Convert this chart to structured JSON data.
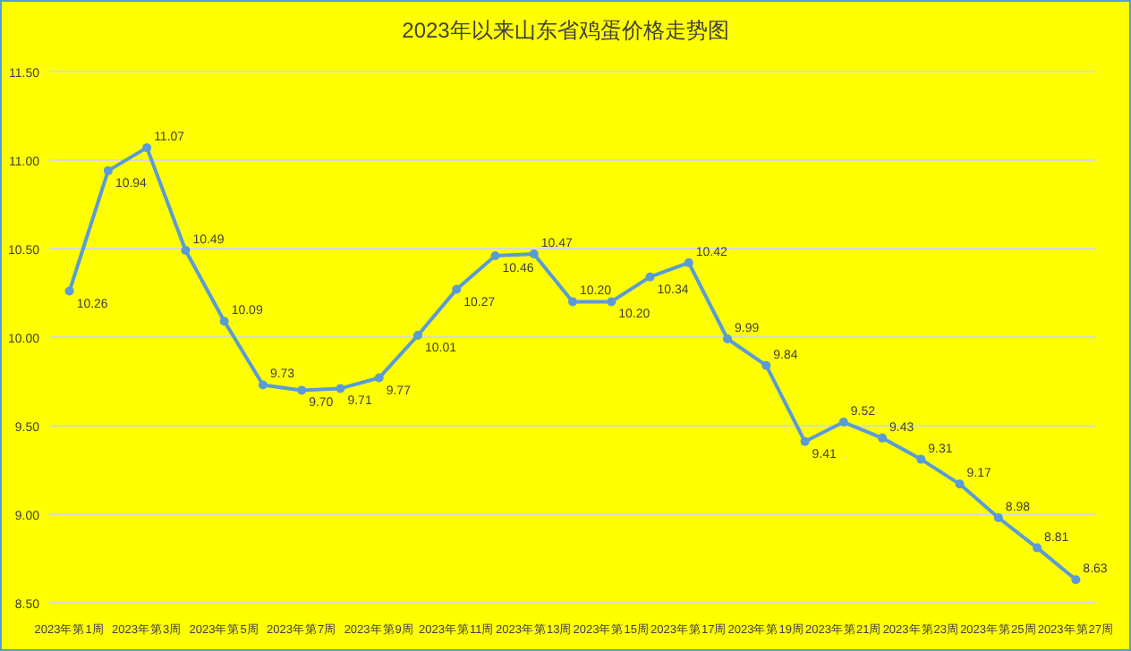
{
  "chart_data": {
    "type": "line",
    "title": "2023年以来山东省鸡蛋价格走势图",
    "categories": [
      "2023年第1周",
      null,
      "2023年第3周",
      null,
      "2023年第5周",
      null,
      "2023年第7周",
      null,
      "2023年第9周",
      null,
      "2023年第11周",
      null,
      "2023年第13周",
      null,
      "2023年第15周",
      null,
      "2023年第17周",
      null,
      "2023年第19周",
      null,
      "2023年第21周",
      null,
      "2023年第23周",
      null,
      "2023年第25周",
      null,
      "2023年第27周"
    ],
    "series": [
      {
        "color": "#5b9bd5",
        "values": [
          10.26,
          10.94,
          11.07,
          10.49,
          10.09,
          9.73,
          9.7,
          9.71,
          9.77,
          10.01,
          10.27,
          10.46,
          10.47,
          10.2,
          10.2,
          10.34,
          10.42,
          9.99,
          9.84,
          9.41,
          9.52,
          9.43,
          9.31,
          9.17,
          8.98,
          8.81,
          8.63
        ]
      }
    ],
    "ylim": [
      8.5,
      11.5
    ],
    "yticks": [
      {
        "value": 8.5,
        "label": "8.50"
      },
      {
        "value": 9,
        "label": "9.00"
      },
      {
        "value": 9.5,
        "label": "9.50"
      },
      {
        "value": 10,
        "label": "10.00"
      },
      {
        "value": 10.5,
        "label": "10.50"
      },
      {
        "value": 11,
        "label": "11.00"
      },
      {
        "value": 11.5,
        "label": "11.50"
      }
    ],
    "value_labels": [
      "10.26",
      "10.94",
      "11.07",
      "10.49",
      "10.09",
      "9.73",
      "9.70",
      "9.71",
      "9.77",
      "10.01",
      "10.27",
      "10.46",
      "10.47",
      "10.20",
      "10.20",
      "10.34",
      "10.42",
      "9.99",
      "9.84",
      "9.41",
      "9.52",
      "9.43",
      "9.31",
      "9.17",
      "8.98",
      "8.81",
      "8.63"
    ],
    "grid": "y",
    "marker": "circle",
    "line_style": "solid"
  }
}
